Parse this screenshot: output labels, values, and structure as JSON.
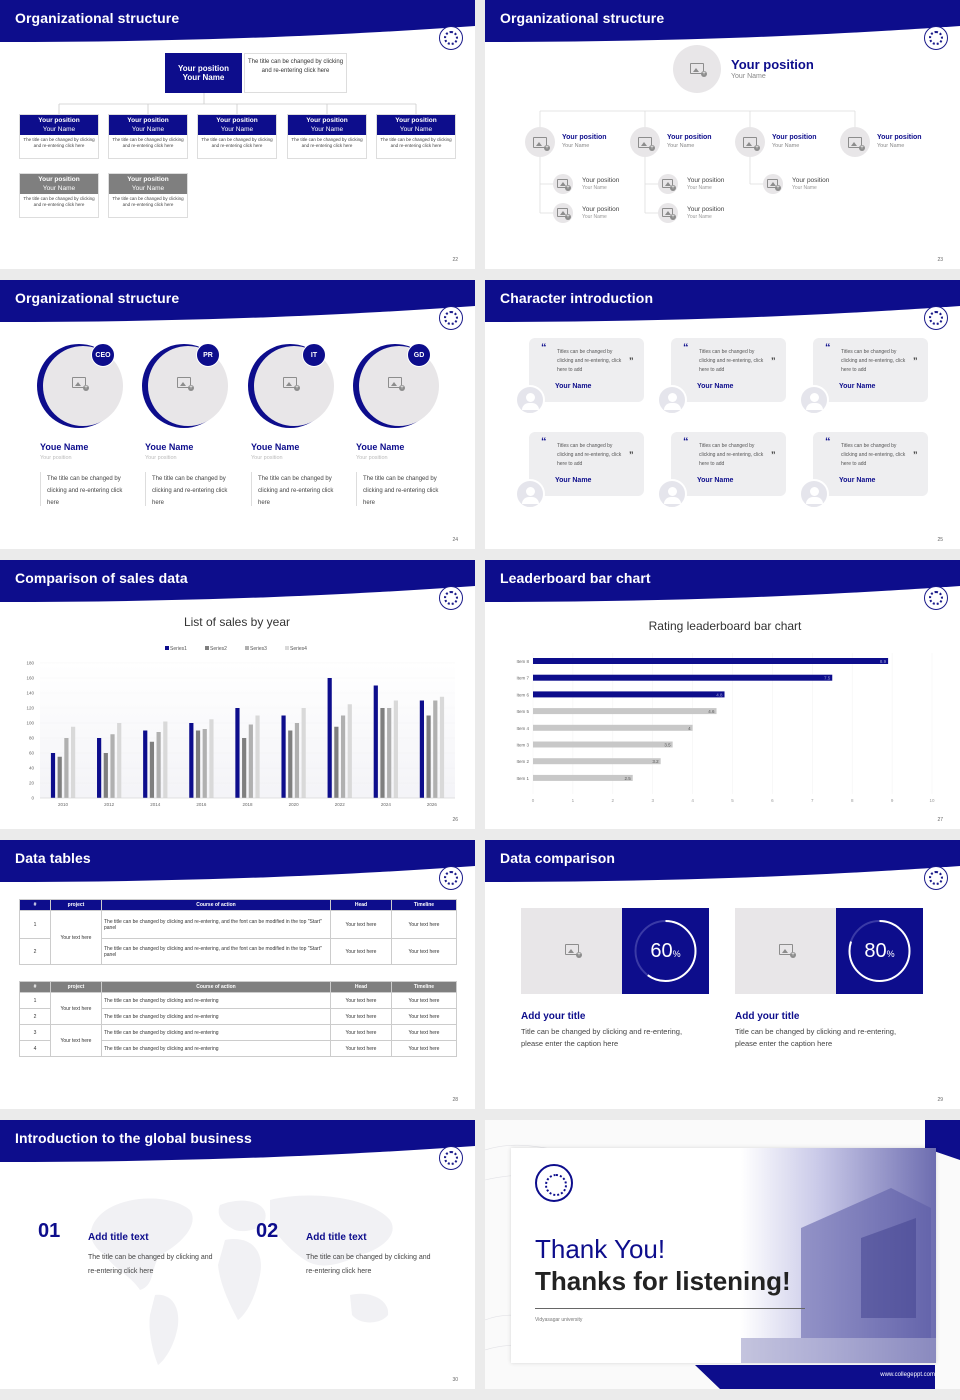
{
  "slides": {
    "s22": {
      "title": "Organizational structure",
      "page": "22",
      "top": {
        "position": "Your position",
        "name": "Your Name",
        "note": "The title can be changed by clicking and re-entering click here"
      },
      "row1": [
        {
          "position": "Your position",
          "name": "Your Name",
          "desc": "The title can be changed by clicking and re-entering click here"
        },
        {
          "position": "Your position",
          "name": "Your Name",
          "desc": "The title can be changed by clicking and re-entering click here"
        },
        {
          "position": "Your position",
          "name": "Your Name",
          "desc": "The title can be changed by clicking and re-entering click here"
        },
        {
          "position": "Your position",
          "name": "Your Name",
          "desc": "The title can be changed by clicking and re-entering click here"
        },
        {
          "position": "Your position",
          "name": "Your Name",
          "desc": "The title can be changed by clicking and re-entering click here"
        }
      ],
      "row2": [
        {
          "position": "Your position",
          "name": "Your Name",
          "desc": "The title can be changed by clicking and re-entering click here"
        },
        {
          "position": "Your position",
          "name": "Your Name",
          "desc": "The title can be changed by clicking and re-entering click here"
        }
      ]
    },
    "s23": {
      "title": "Organizational structure",
      "page": "23",
      "top": {
        "position": "Your position",
        "name": "Your Name"
      },
      "heads": [
        {
          "position": "Your position",
          "name": "Your Name"
        },
        {
          "position": "Your position",
          "name": "Your Name"
        },
        {
          "position": "Your position",
          "name": "Your Name"
        },
        {
          "position": "Your position",
          "name": "Your Name"
        }
      ],
      "subs": [
        {
          "position": "Your position",
          "name": "Your Name"
        },
        {
          "position": "Your position",
          "name": "Your Name"
        },
        {
          "position": "Your position",
          "name": "Your Name"
        },
        {
          "position": "Your position",
          "name": "Your Name"
        },
        {
          "position": "Your position",
          "name": "Your Name"
        }
      ]
    },
    "s24": {
      "title": "Organizational structure",
      "page": "24",
      "people": [
        {
          "badge": "CEO",
          "name": "Youe Name",
          "position": "Your position",
          "desc": "The title can be changed by clicking and re-entering click here"
        },
        {
          "badge": "PR",
          "name": "Youe Name",
          "position": "Your position",
          "desc": "The title can be changed by clicking and re-entering click here"
        },
        {
          "badge": "IT",
          "name": "Youe Name",
          "position": "Your position",
          "desc": "The title can be changed by clicking and re-entering click here"
        },
        {
          "badge": "GD",
          "name": "Youe Name",
          "position": "Your position",
          "desc": "The title can be changed by clicking and re-entering click here"
        }
      ]
    },
    "s25": {
      "title": "Character introduction",
      "page": "25",
      "cards": [
        {
          "quote": "Titles can be changed by clicking and re-entering, click here to add",
          "name": "Your Name"
        },
        {
          "quote": "Titles can be changed by clicking and re-entering, click here to add",
          "name": "Your Name"
        },
        {
          "quote": "Titles can be changed by clicking and re-entering, click here to add",
          "name": "Your Name"
        },
        {
          "quote": "Titles can be changed by clicking and re-entering, click here to add",
          "name": "Your Name"
        },
        {
          "quote": "Titles can be changed by clicking and re-entering, click here to add",
          "name": "Your Name"
        },
        {
          "quote": "Titles can be changed by clicking and re-entering, click here to add",
          "name": "Your Name"
        }
      ]
    },
    "s26": {
      "title": "Comparison of sales data",
      "page": "26"
    },
    "s27": {
      "title": "Leaderboard bar chart",
      "page": "27"
    },
    "s28": {
      "title": "Data tables",
      "page": "28",
      "t1": {
        "headers": [
          "#",
          "project",
          "Course of action",
          "Head",
          "Timeline"
        ],
        "rows": [
          {
            "num": "1",
            "action": "The title can be changed by clicking and re-entering, and the font can be modified in the top \"Start\" panel",
            "head": "Your text here",
            "timeline": "Your text here"
          },
          {
            "num": "2",
            "action": "The title can be changed by clicking and re-entering, and the font can be modified in the top \"Start\" panel",
            "head": "Your text here",
            "timeline": "Your text here"
          }
        ],
        "project": "Your text here"
      },
      "t2": {
        "headers": [
          "#",
          "project",
          "Course of action",
          "Head",
          "Timeline"
        ],
        "rows": [
          {
            "num": "1",
            "action": "The title can be changed by clicking and re-entering",
            "head": "Your text here",
            "timeline": "Your text here"
          },
          {
            "num": "2",
            "action": "The title can be changed by clicking and re-entering",
            "head": "Your text here",
            "timeline": "Your text here"
          },
          {
            "num": "3",
            "action": "The title can be changed by clicking and re-entering",
            "head": "Your text here",
            "timeline": "Your text here"
          },
          {
            "num": "4",
            "action": "The title can be changed by clicking and re-entering",
            "head": "Your text here",
            "timeline": "Your text here"
          }
        ],
        "project_a": "Your text here",
        "project_b": "Your text here"
      }
    },
    "s29": {
      "title": "Data comparison",
      "page": "29",
      "items": [
        {
          "percent": "60",
          "unit": "%",
          "title": "Add your title",
          "desc": "Title can be changed by clicking and re-entering, please enter the caption here",
          "progress": 0.6
        },
        {
          "percent": "80",
          "unit": "%",
          "title": "Add your title",
          "desc": "Title can be changed by clicking and re-entering, please enter the caption here",
          "progress": 0.8
        }
      ]
    },
    "s30": {
      "title": "Introduction to the global business",
      "page": "30",
      "items": [
        {
          "num": "01",
          "title": "Add title text",
          "desc": "The title can be changed by clicking and re-entering click here"
        },
        {
          "num": "02",
          "title": "Add title text",
          "desc": "The title can be changed by clicking and re-entering click here"
        }
      ]
    },
    "s31": {
      "line1": "Thank You!",
      "line2": "Thanks for listening!",
      "university": "Vidyasagar university",
      "url": "www.collegeppt.com"
    }
  },
  "chart_data": [
    {
      "type": "bar",
      "title": "List of sales by year",
      "categories": [
        "2010",
        "2012",
        "2014",
        "2016",
        "2018",
        "2020",
        "2022",
        "2024",
        "2026"
      ],
      "series": [
        {
          "name": "Series1",
          "color": "#0d0d8c",
          "values": [
            60,
            80,
            90,
            100,
            120,
            110,
            160,
            150,
            130
          ]
        },
        {
          "name": "Series2",
          "color": "#7f7f7f",
          "values": [
            55,
            60,
            75,
            90,
            80,
            90,
            95,
            120,
            110
          ]
        },
        {
          "name": "Series3",
          "color": "#b0b0b0",
          "values": [
            80,
            85,
            88,
            92,
            98,
            100,
            110,
            120,
            130
          ]
        },
        {
          "name": "Series4",
          "color": "#d9d9d9",
          "values": [
            95,
            100,
            102,
            105,
            110,
            120,
            125,
            130,
            135
          ]
        }
      ],
      "ylim": [
        0,
        180
      ],
      "yticks": [
        0,
        20,
        40,
        60,
        80,
        100,
        120,
        140,
        160,
        180
      ],
      "legend": "top"
    },
    {
      "type": "bar",
      "orientation": "horizontal",
      "title": "Rating leaderboard bar chart",
      "categories": [
        "Item 8",
        "Item 7",
        "Item 6",
        "Item 5",
        "Item 4",
        "Item 3",
        "Item 2",
        "Item 1"
      ],
      "values": [
        8.9,
        7.5,
        4.8,
        4.6,
        4,
        3.5,
        3.2,
        2.5
      ],
      "highlight_colors": {
        "top": "#0d0d8c",
        "rest": "#c8c8c8"
      },
      "xlim": [
        0,
        10
      ],
      "xticks": [
        0,
        1,
        2,
        3,
        4,
        5,
        6,
        7,
        8,
        9,
        10
      ]
    }
  ]
}
